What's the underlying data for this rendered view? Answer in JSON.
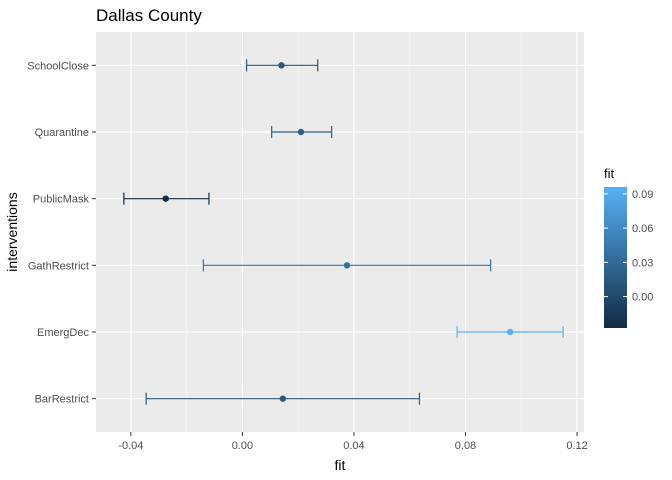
{
  "chart_data": {
    "type": "errorbar",
    "title": "Dallas County",
    "xlabel": "fit",
    "ylabel": "interventions",
    "xlim": [
      -0.0525,
      0.1225
    ],
    "x_ticks": [
      -0.04,
      0.0,
      0.04,
      0.08,
      0.12
    ],
    "x_tick_labels": [
      "-0.04",
      "0.00",
      "0.04",
      "0.08",
      "0.12"
    ],
    "categories": [
      "BarRestrict",
      "EmergDec",
      "GathRestrict",
      "PublicMask",
      "Quarantine",
      "SchoolClose"
    ],
    "points": [
      {
        "name": "BarRestrict",
        "fit": 0.0145,
        "lower": -0.0345,
        "upper": 0.0635
      },
      {
        "name": "EmergDec",
        "fit": 0.096,
        "lower": 0.077,
        "upper": 0.115
      },
      {
        "name": "GathRestrict",
        "fit": 0.0375,
        "lower": -0.014,
        "upper": 0.089
      },
      {
        "name": "PublicMask",
        "fit": -0.0275,
        "lower": -0.0425,
        "upper": -0.012
      },
      {
        "name": "Quarantine",
        "fit": 0.021,
        "lower": 0.0105,
        "upper": 0.032
      },
      {
        "name": "SchoolClose",
        "fit": 0.014,
        "lower": 0.0015,
        "upper": 0.027
      }
    ],
    "grid": true,
    "legend": {
      "title": "fit",
      "position": "right",
      "ticks": [
        0.0,
        0.03,
        0.06,
        0.09
      ],
      "tick_labels": [
        "0.00",
        "0.03",
        "0.06",
        "0.09"
      ],
      "range": [
        -0.0275,
        0.096
      ],
      "color_low": "#132b43",
      "color_high": "#56b1f7"
    }
  }
}
